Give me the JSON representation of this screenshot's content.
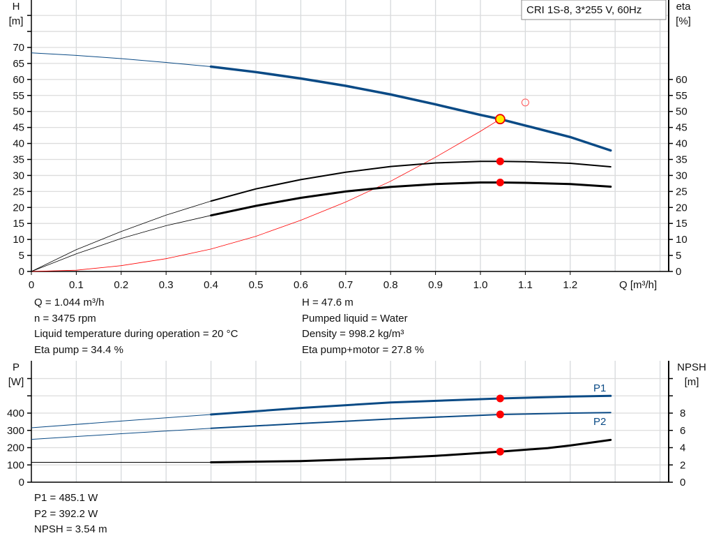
{
  "chart_data": [
    {
      "type": "line",
      "title": "CRI 1S-8, 3*255 V, 60Hz",
      "xlabel": "Q [m³/h]",
      "ylabel_left": [
        "H",
        "[m]"
      ],
      "ylabel_right": [
        "eta",
        "[%]"
      ],
      "xlim": [
        0,
        1.4
      ],
      "ylim": [
        0,
        80
      ],
      "grid": true,
      "x_ticks": [
        "0",
        "0.1",
        "0.2",
        "0.3",
        "0.4",
        "0.5",
        "0.6",
        "0.7",
        "0.8",
        "0.9",
        "1.0",
        "1.1",
        "1.2"
      ],
      "y_ticks": [
        "0",
        "5",
        "10",
        "15",
        "20",
        "25",
        "30",
        "35",
        "40",
        "45",
        "50",
        "55",
        "60",
        "65",
        "70"
      ],
      "y_ticks_right": [
        "0",
        "5",
        "10",
        "15",
        "20",
        "25",
        "30",
        "35",
        "40",
        "45",
        "50",
        "55",
        "60"
      ],
      "series": [
        {
          "id": "H",
          "color": "#0a4a85",
          "x": [
            0,
            0.1,
            0.2,
            0.3,
            0.4,
            0.5,
            0.6,
            0.7,
            0.8,
            0.9,
            1.0,
            1.044,
            1.1,
            1.2,
            1.29
          ],
          "y": [
            68.3,
            67.5,
            66.5,
            65.3,
            64,
            62.3,
            60.3,
            58,
            55.3,
            52.2,
            48.9,
            47.6,
            45.6,
            42,
            37.8
          ]
        },
        {
          "id": "eta-pump",
          "color": "#000000",
          "x": [
            0,
            0.1,
            0.2,
            0.3,
            0.4,
            0.5,
            0.6,
            0.7,
            0.8,
            0.9,
            1.0,
            1.044,
            1.1,
            1.2,
            1.29
          ],
          "y": [
            0,
            6.8,
            12.5,
            17.6,
            22,
            25.8,
            28.7,
            31,
            32.8,
            33.9,
            34.4,
            34.4,
            34.3,
            33.8,
            32.7
          ]
        },
        {
          "id": "eta-pump-motor",
          "color": "#000000",
          "x": [
            0,
            0.1,
            0.2,
            0.3,
            0.4,
            0.5,
            0.6,
            0.7,
            0.8,
            0.9,
            1.0,
            1.044,
            1.1,
            1.2,
            1.29
          ],
          "y": [
            0,
            5.5,
            10.3,
            14.3,
            17.5,
            20.5,
            23,
            25,
            26.4,
            27.3,
            27.8,
            27.8,
            27.7,
            27.3,
            26.5
          ]
        },
        {
          "id": "system-curve",
          "color": "#ff0000",
          "x": [
            0,
            0.1,
            0.2,
            0.3,
            0.4,
            0.5,
            0.6,
            0.7,
            0.8,
            0.9,
            1.0,
            1.044
          ],
          "y": [
            0,
            0.4,
            1.8,
            4,
            7,
            11,
            16,
            21.7,
            28.2,
            35.7,
            43.8,
            47.6
          ]
        }
      ],
      "operating_point": {
        "Q": 1.044,
        "H": 47.6,
        "eta_pump": 34.4,
        "eta_pump_motor": 27.8
      },
      "requested_point": {
        "Q": 1.1,
        "H": 52.8
      },
      "duty_range_start_Q": 0.4
    },
    {
      "type": "line",
      "xlim": [
        0,
        1.4
      ],
      "ylabel_left": [
        "P",
        "[W]"
      ],
      "ylabel_right": [
        "NPSH",
        "[m]"
      ],
      "ylim": [
        0,
        600
      ],
      "ylim_right": [
        0,
        12
      ],
      "grid": true,
      "y_ticks": [
        "0",
        "100",
        "200",
        "300",
        "400"
      ],
      "y_ticks_right": [
        "0",
        "2",
        "4",
        "6",
        "8"
      ],
      "series": [
        {
          "id": "P1",
          "name": "P1",
          "color": "#0a4a85",
          "x": [
            0,
            0.2,
            0.4,
            0.6,
            0.8,
            1.044,
            1.2,
            1.29
          ],
          "y": [
            315,
            354,
            392,
            430,
            462,
            485,
            496,
            500
          ]
        },
        {
          "id": "P2",
          "name": "P2",
          "color": "#0a4a85",
          "x": [
            0,
            0.2,
            0.4,
            0.6,
            0.8,
            1.044,
            1.2,
            1.29
          ],
          "y": [
            248,
            281,
            312,
            340,
            366,
            392,
            400,
            403
          ]
        },
        {
          "id": "NPSH",
          "color": "#000000",
          "axis": "right",
          "x": [
            0,
            0.4,
            0.6,
            0.8,
            0.9,
            1.044,
            1.15,
            1.2,
            1.29
          ],
          "y": [
            2.3,
            2.3,
            2.45,
            2.8,
            3.05,
            3.54,
            3.95,
            4.25,
            4.9
          ]
        }
      ],
      "operating_point": {
        "Q": 1.044,
        "P1": 485.1,
        "P2": 392.2,
        "NPSH": 3.54
      }
    }
  ],
  "info_top": {
    "left": [
      "Q = 1.044 m³/h",
      "n = 3475 rpm",
      "Liquid temperature during operation = 20 °C",
      "Eta pump = 34.4 %"
    ],
    "right": [
      "H = 47.6 m",
      "Pumped liquid = Water",
      "Density = 998.2 kg/m³",
      "Eta pump+motor = 27.8 %"
    ]
  },
  "info_bottom": [
    "P1 = 485.1 W",
    "P2 = 392.2 W",
    "NPSH = 3.54 m"
  ]
}
